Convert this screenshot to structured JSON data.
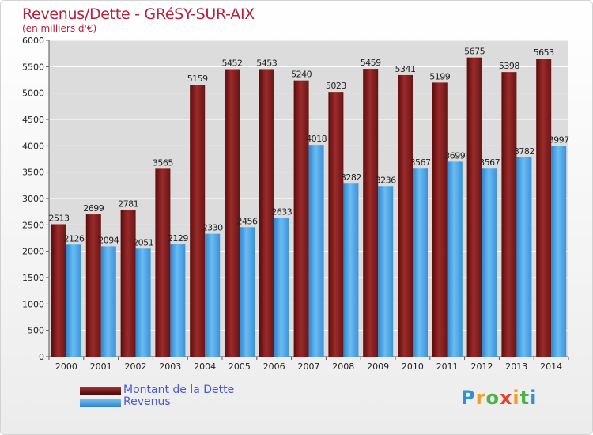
{
  "header": {
    "title": "Revenus/Dette - GRéSY-SUR-AIX",
    "subtitle": "(en milliers d'€)"
  },
  "legend": {
    "items": [
      {
        "label": "Montant de la Dette",
        "color": "#7a1414"
      },
      {
        "label": "Revenus",
        "color": "#4aa3e8"
      }
    ]
  },
  "logo": {
    "text": "Proxiti"
  },
  "colors": {
    "debt": "#8a2323",
    "revenue": "#4fa8ea",
    "axis_text": "#222222",
    "grid": "#ffffff",
    "plot_bg": "#dcdcdc"
  },
  "chart_data": {
    "type": "bar",
    "title": "Revenus/Dette - GRéSY-SUR-AIX",
    "subtitle": "(en milliers d'€)",
    "categories": [
      "2000",
      "2001",
      "2002",
      "2003",
      "2004",
      "2005",
      "2006",
      "2007",
      "2008",
      "2009",
      "2010",
      "2011",
      "2012",
      "2013",
      "2014"
    ],
    "series": [
      {
        "name": "Montant de la Dette",
        "values": [
          2513,
          2699,
          2781,
          3565,
          5159,
          5452,
          5453,
          5240,
          5023,
          5459,
          5341,
          5199,
          5675,
          5398,
          5653
        ]
      },
      {
        "name": "Revenus",
        "values": [
          2126,
          2094,
          2051,
          2129,
          2330,
          2456,
          2633,
          4018,
          3282,
          3236,
          3567,
          3699,
          3567,
          3782,
          3997
        ]
      }
    ],
    "ylim": [
      0,
      6000
    ],
    "yticks": [
      0,
      500,
      1000,
      1500,
      2000,
      2500,
      3000,
      3500,
      4000,
      4500,
      5000,
      5500,
      6000
    ],
    "grid": true,
    "legend_position": "bottom-left",
    "data_labels": true
  }
}
